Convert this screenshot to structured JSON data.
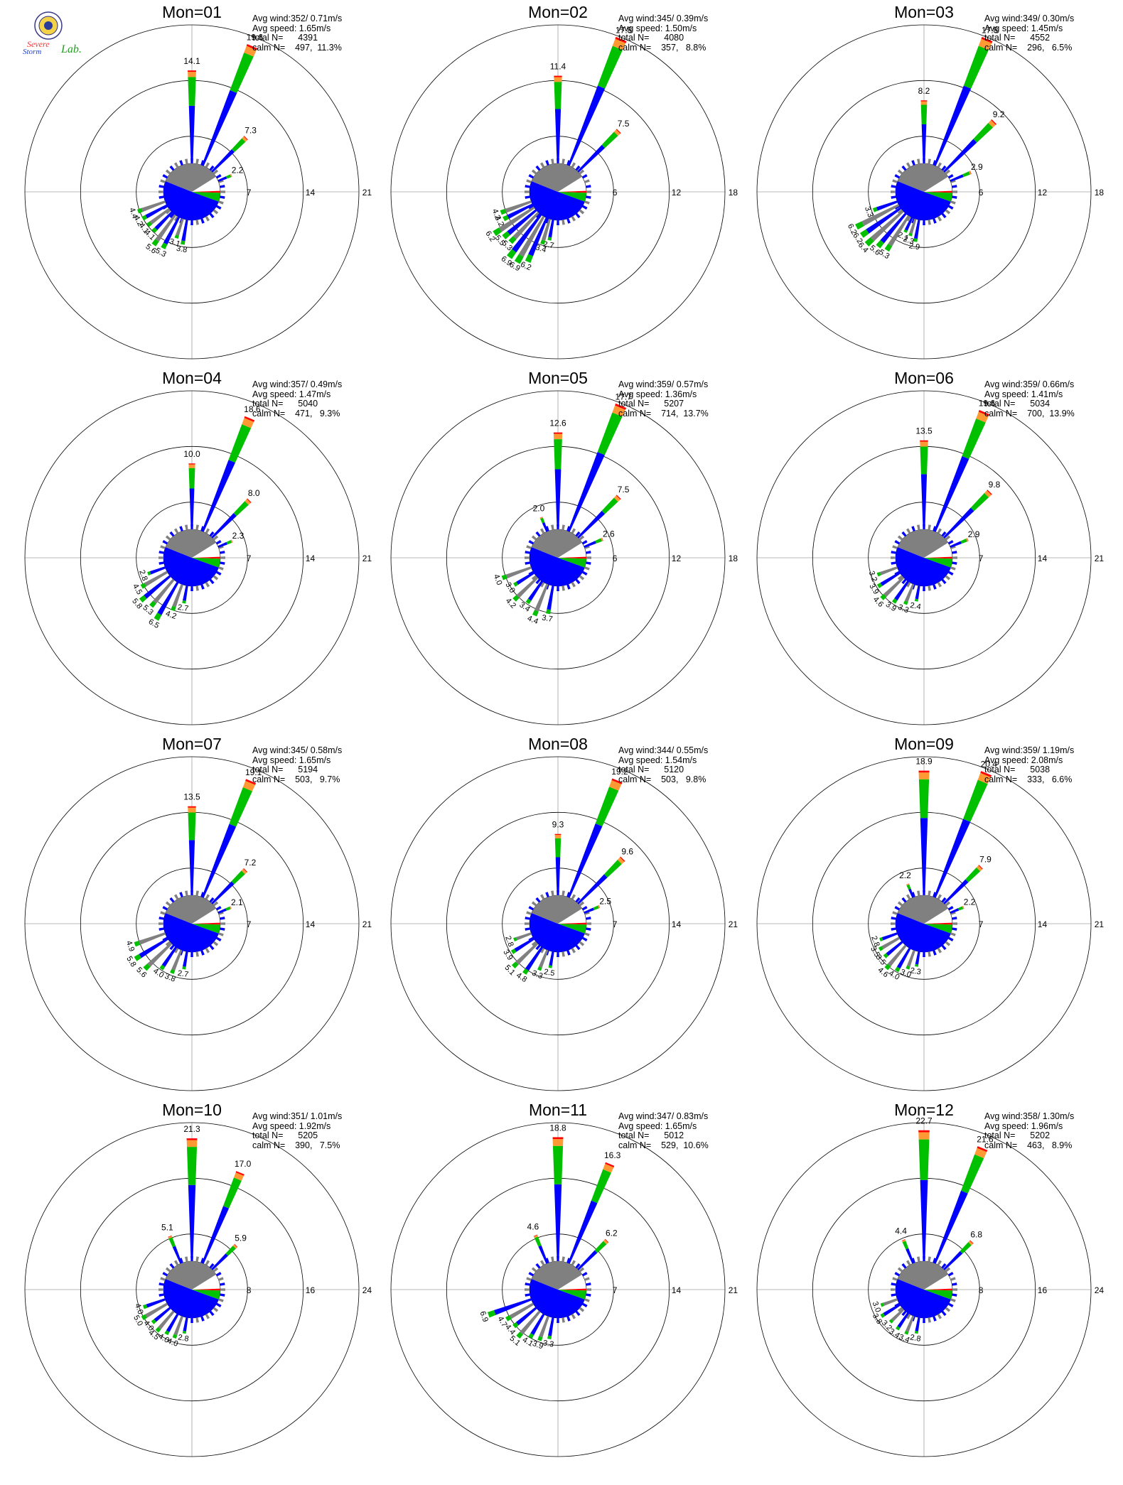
{
  "header": {
    "logo_text_1": "Severe",
    "logo_text_2": "Storm",
    "logo_text_3": "Lab."
  },
  "colors": {
    "bin1": "#0000ff",
    "bin2": "#00c000",
    "bin3": "#ff9933",
    "bin4": "#ff0000",
    "bar_alt": "#808080",
    "grid": "#a0a0a0"
  },
  "chart_data": [
    {
      "type": "windrose",
      "title": "Mon=01",
      "avg_wind": "352/ 0.71m/s",
      "avg_speed": "1.65m/s",
      "total_n": "4391",
      "calm_n": "497,  11.3%",
      "rings": [
        7,
        14,
        21
      ],
      "labels": [
        {
          "dir": 0,
          "text": "14.1"
        },
        {
          "dir": 22.5,
          "text": "19.6"
        },
        {
          "dir": 45,
          "text": "7.3"
        },
        {
          "dir": 67.5,
          "text": "2.2"
        }
      ],
      "sw_labels": [
        "3.8",
        "3.1",
        "5.3",
        "5.6",
        "4.1",
        "4.1",
        "4.2",
        "4.4"
      ]
    },
    {
      "type": "windrose",
      "title": "Mon=02",
      "avg_wind": "345/ 0.39m/s",
      "avg_speed": "1.50m/s",
      "total_n": "4080",
      "calm_n": "357,   8.8%",
      "rings": [
        6,
        12,
        18
      ],
      "labels": [
        {
          "dir": 0,
          "text": "11.4"
        },
        {
          "dir": 22.5,
          "text": "17.8"
        },
        {
          "dir": 45,
          "text": "7.5"
        }
      ],
      "sw_labels": [
        "2.7",
        "3.4",
        "6.2",
        "6.9",
        "6.9",
        "5.3",
        "5.5",
        "6.2",
        "4.2",
        "4.2"
      ]
    },
    {
      "type": "windrose",
      "title": "Mon=03",
      "avg_wind": "349/ 0.30m/s",
      "avg_speed": "1.45m/s",
      "total_n": "4552",
      "calm_n": "296,   6.5%",
      "rings": [
        6,
        12,
        18
      ],
      "labels": [
        {
          "dir": 0,
          "text": "8.2"
        },
        {
          "dir": 22.5,
          "text": "17.8"
        },
        {
          "dir": 45,
          "text": "9.2"
        },
        {
          "dir": 67.5,
          "text": "2.9"
        }
      ],
      "sw_labels": [
        "2.9",
        "2.3",
        "2.1",
        "5.3",
        "5.6",
        "6.4",
        "6.2",
        "6.2",
        "3.3"
      ]
    },
    {
      "type": "windrose",
      "title": "Mon=04",
      "avg_wind": "357/ 0.49m/s",
      "avg_speed": "1.47m/s",
      "total_n": "5040",
      "calm_n": "471,   9.3%",
      "rings": [
        7,
        14,
        21
      ],
      "labels": [
        {
          "dir": 0,
          "text": "10.0"
        },
        {
          "dir": 22.5,
          "text": "18.6"
        },
        {
          "dir": 45,
          "text": "8.0"
        },
        {
          "dir": 67.5,
          "text": "2.3"
        }
      ],
      "sw_labels": [
        "2.7",
        "4.2",
        "6.5",
        "5.3",
        "5.8",
        "4.5",
        "2.8"
      ]
    },
    {
      "type": "windrose",
      "title": "Mon=05",
      "avg_wind": "359/ 0.57m/s",
      "avg_speed": "1.36m/s",
      "total_n": "5207",
      "calm_n": "714,  13.7%",
      "rings": [
        6,
        12,
        18
      ],
      "labels": [
        {
          "dir": 0,
          "text": "12.6"
        },
        {
          "dir": 22.5,
          "text": "17.7"
        },
        {
          "dir": 45,
          "text": "7.5"
        },
        {
          "dir": 67.5,
          "text": "2.6"
        },
        {
          "dir": 337.5,
          "text": "2.0"
        }
      ],
      "sw_labels": [
        "3.7",
        "4.4",
        "3.4",
        "4.2",
        "3.0",
        "4.0"
      ]
    },
    {
      "type": "windrose",
      "title": "Mon=06",
      "avg_wind": "359/ 0.66m/s",
      "avg_speed": "1.41m/s",
      "total_n": "5034",
      "calm_n": "700,  13.9%",
      "rings": [
        7,
        14,
        21
      ],
      "labels": [
        {
          "dir": 0,
          "text": "13.5"
        },
        {
          "dir": 22.5,
          "text": "19.6"
        },
        {
          "dir": 45,
          "text": "9.8"
        },
        {
          "dir": 67.5,
          "text": "2.9"
        }
      ],
      "sw_labels": [
        "2.4",
        "3.3",
        "3.9",
        "4.6",
        "3.9",
        "3.2"
      ]
    },
    {
      "type": "windrose",
      "title": "Mon=07",
      "avg_wind": "345/ 0.58m/s",
      "avg_speed": "1.65m/s",
      "total_n": "5194",
      "calm_n": "503,   9.7%",
      "rings": [
        7,
        14,
        21
      ],
      "labels": [
        {
          "dir": 0,
          "text": "13.5"
        },
        {
          "dir": 22.5,
          "text": "19.1"
        },
        {
          "dir": 45,
          "text": "7.2"
        },
        {
          "dir": 67.5,
          "text": "2.1"
        }
      ],
      "sw_labels": [
        "2.7",
        "3.8",
        "4.0",
        "5.6",
        "5.8",
        "4.9"
      ]
    },
    {
      "type": "windrose",
      "title": "Mon=08",
      "avg_wind": "344/ 0.55m/s",
      "avg_speed": "1.54m/s",
      "total_n": "5120",
      "calm_n": "503,   9.8%",
      "rings": [
        7,
        14,
        21
      ],
      "labels": [
        {
          "dir": 0,
          "text": "9.3"
        },
        {
          "dir": 22.5,
          "text": "19.2"
        },
        {
          "dir": 45,
          "text": "9.6"
        },
        {
          "dir": 67.5,
          "text": "2.5"
        }
      ],
      "sw_labels": [
        "2.5",
        "3.3",
        "4.8",
        "5.1",
        "3.9",
        "2.8"
      ]
    },
    {
      "type": "windrose",
      "title": "Mon=09",
      "avg_wind": "359/ 1.19m/s",
      "avg_speed": "2.08m/s",
      "total_n": "5038",
      "calm_n": "333,   6.6%",
      "rings": [
        7,
        14,
        21
      ],
      "labels": [
        {
          "dir": 0,
          "text": "18.9"
        },
        {
          "dir": 22.5,
          "text": "20.4"
        },
        {
          "dir": 45,
          "text": "7.9"
        },
        {
          "dir": 67.5,
          "text": "2.2"
        },
        {
          "dir": 337.5,
          "text": "2.2"
        }
      ],
      "sw_labels": [
        "2.3",
        "3.0",
        "4.0",
        "4.6",
        "3.5",
        "3.5",
        "2.8"
      ]
    },
    {
      "type": "windrose",
      "title": "Mon=10",
      "avg_wind": "351/ 1.01m/s",
      "avg_speed": "1.92m/s",
      "total_n": "5205",
      "calm_n": "390,   7.5%",
      "rings": [
        8,
        16,
        24
      ],
      "labels": [
        {
          "dir": 0,
          "text": "21.3"
        },
        {
          "dir": 22.5,
          "text": "17.0"
        },
        {
          "dir": 45,
          "text": "5.9"
        },
        {
          "dir": 337.5,
          "text": "5.1"
        }
      ],
      "sw_labels": [
        "2.8",
        "4.0",
        "4.0",
        "4.5",
        "4.0",
        "5.0",
        "4.0"
      ]
    },
    {
      "type": "windrose",
      "title": "Mon=11",
      "avg_wind": "347/ 0.83m/s",
      "avg_speed": "1.65m/s",
      "total_n": "5012",
      "calm_n": "529,  10.6%",
      "rings": [
        7,
        14,
        21
      ],
      "labels": [
        {
          "dir": 0,
          "text": "18.8"
        },
        {
          "dir": 22.5,
          "text": "16.3"
        },
        {
          "dir": 45,
          "text": "6.2"
        },
        {
          "dir": 337.5,
          "text": "4.6"
        }
      ],
      "sw_labels": [
        "3.3",
        "3.9",
        "4.1",
        "5.1",
        "4.4",
        "4.7",
        "6.9"
      ]
    },
    {
      "type": "windrose",
      "title": "Mon=12",
      "avg_wind": "358/ 1.30m/s",
      "avg_speed": "1.96m/s",
      "total_n": "5202",
      "calm_n": "463,   8.9%",
      "rings": [
        8,
        16,
        24
      ],
      "labels": [
        {
          "dir": 0,
          "text": "22.7"
        },
        {
          "dir": 22.5,
          "text": "21.6"
        },
        {
          "dir": 45,
          "text": "6.8"
        },
        {
          "dir": 337.5,
          "text": "4.4"
        }
      ],
      "sw_labels": [
        "2.8",
        "3.4",
        "3.4",
        "3.2",
        "3.8",
        "3.0"
      ]
    }
  ]
}
